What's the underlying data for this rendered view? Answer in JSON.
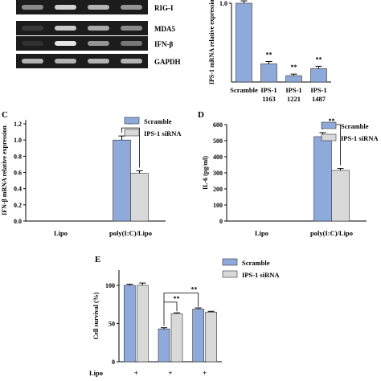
{
  "colors": {
    "blue": "#8eaadb",
    "gray": "#d9d9d9",
    "gel_bg": "#1c1c1c",
    "band": "#e6e6e6"
  },
  "panelA": {
    "lanes": 4,
    "gels": [
      {
        "label": "RIG-I",
        "intensity": [
          0.55,
          0.9,
          0.75,
          0.6
        ]
      },
      {
        "label": "MDA5",
        "intensity": [
          0.15,
          0.85,
          0.7,
          0.55
        ]
      },
      {
        "label": "IFN-β",
        "intensity": [
          0.1,
          1.0,
          0.6,
          0.45
        ]
      },
      {
        "label": "GAPDH",
        "intensity": [
          0.75,
          0.75,
          0.75,
          0.75
        ]
      }
    ]
  },
  "chart_data": [
    {
      "panel": "B",
      "type": "bar",
      "ylabel": "IPS-1 mRNA relative expression",
      "categories": [
        [
          "Scramble"
        ],
        [
          "IPS-1",
          "1163"
        ],
        [
          "IPS-1",
          "1221"
        ],
        [
          "IPS-1",
          "1487"
        ]
      ],
      "values": [
        1.0,
        0.23,
        0.08,
        0.17
      ],
      "errors": [
        0.03,
        0.03,
        0.02,
        0.03
      ],
      "ylim": [
        0,
        1.0
      ],
      "yticks": [
        {
          "v": 1.0,
          "t": "1.0"
        }
      ],
      "sig": [
        "",
        "**",
        "**",
        "**"
      ]
    },
    {
      "panel": "C",
      "type": "bar",
      "ylabel": "IFN-β mRNA relative expression",
      "categories": [
        "Lipo",
        "poly(I:C)/Lipo"
      ],
      "series": [
        {
          "name": "Scramble",
          "values": [
            0,
            1.0
          ],
          "errors": [
            0,
            0.05
          ]
        },
        {
          "name": "IPS-1 siRNA",
          "values": [
            0,
            0.59
          ],
          "errors": [
            0,
            0.03
          ]
        }
      ],
      "ylim": [
        0,
        1.25
      ],
      "yticks": [
        {
          "v": 0,
          "t": "0.0"
        },
        {
          "v": 0.2,
          "t": "0.2"
        },
        {
          "v": 0.4,
          "t": "0.4"
        },
        {
          "v": 0.6,
          "t": "0.6"
        },
        {
          "v": 0.8,
          "t": "0.8"
        },
        {
          "v": 1.0,
          "t": "1.0"
        },
        {
          "v": 1.2,
          "t": "1.2"
        }
      ],
      "annotation": "**"
    },
    {
      "panel": "D",
      "type": "bar",
      "ylabel": "IL-6 (pg/ml)",
      "categories": [
        "Lipo",
        "poly(I:C)/Lipo"
      ],
      "series": [
        {
          "name": "Scramble",
          "values": [
            0,
            525
          ],
          "errors": [
            0,
            25
          ]
        },
        {
          "name": "IPS-1 siRNA",
          "values": [
            0,
            315
          ],
          "errors": [
            0,
            12
          ]
        }
      ],
      "ylim": [
        0,
        600
      ],
      "yticks": [
        {
          "v": 0,
          "t": "0"
        },
        {
          "v": 100,
          "t": "100"
        },
        {
          "v": 200,
          "t": "200"
        },
        {
          "v": 300,
          "t": "300"
        },
        {
          "v": 400,
          "t": "400"
        },
        {
          "v": 500,
          "t": "500"
        },
        {
          "v": 600,
          "t": "600"
        }
      ],
      "annotation": "**"
    },
    {
      "panel": "E",
      "type": "bar",
      "ylabel": "Cell survival (%)",
      "categories": [
        "+",
        "+",
        "+"
      ],
      "row_label": "Lipo",
      "series": [
        {
          "name": "Scramble",
          "values": [
            100,
            43,
            69
          ],
          "errors": [
            1.5,
            1.5,
            1.5
          ]
        },
        {
          "name": "IPS-1 siRNA",
          "values": [
            100,
            63,
            65
          ],
          "errors": [
            3,
            1,
            1
          ]
        }
      ],
      "ylim": [
        0,
        120
      ],
      "yticks": [
        {
          "v": 0,
          "t": "0"
        },
        {
          "v": 50,
          "t": "50"
        },
        {
          "v": 100,
          "t": "100"
        }
      ],
      "annotations": [
        "**",
        "**"
      ]
    }
  ],
  "panel_labels": {
    "c": "C",
    "d": "D",
    "e": "E"
  }
}
